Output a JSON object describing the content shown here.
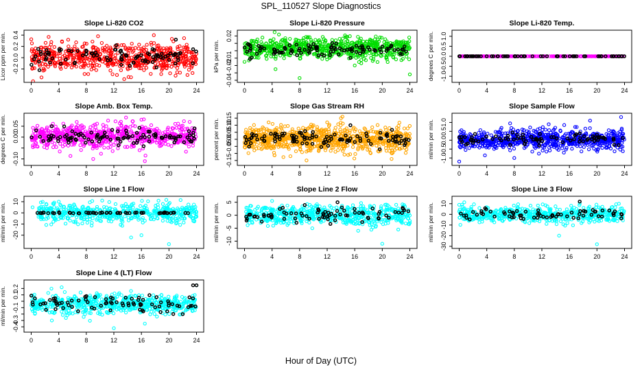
{
  "page": {
    "title": "SPL_110527  Slope Diagnostics",
    "xlabel": "Hour of Day (UTC)"
  },
  "colors": {
    "red": "#ff0000",
    "green": "#00dd00",
    "magenta": "#ff00ff",
    "orange": "#ffa500",
    "blue": "#0000ff",
    "cyan": "#00ffff",
    "black": "#000000"
  },
  "chart_data": [
    {
      "type": "scatter",
      "title": "Slope Li-820 CO2",
      "ylabel": "Licor ppm per min.",
      "xlim": [
        0,
        24
      ],
      "xticks": [
        0,
        4,
        8,
        12,
        16,
        20,
        24
      ],
      "ylim": [
        -0.4,
        0.45
      ],
      "yticks": [
        -0.2,
        0.0,
        0.2,
        0.4
      ],
      "ytick_labels": [
        "-0.2",
        "0.0",
        "0.2",
        "0.4"
      ],
      "series": [
        {
          "color": "red",
          "x_range": [
            0,
            24
          ],
          "count": 620,
          "center": 0.0,
          "spread": 0.12,
          "extremes": [
            [
              17.8,
              0.4
            ],
            [
              1.5,
              -0.35
            ],
            [
              13.5,
              -0.38
            ],
            [
              9.7,
              0.38
            ]
          ]
        },
        {
          "color": "black",
          "x_range": [
            0,
            24
          ],
          "count": 90,
          "center": 0.02,
          "spread": 0.08,
          "extremes": [
            [
              21,
              0.32
            ],
            [
              1.2,
              -0.22
            ],
            [
              23.5,
              0.15
            ]
          ]
        }
      ]
    },
    {
      "type": "scatter",
      "title": "Slope Li-820 Pressure",
      "ylabel": "kPa per min.",
      "xlim": [
        0,
        24
      ],
      "xticks": [
        0,
        4,
        8,
        12,
        16,
        20,
        24
      ],
      "ylim": [
        -0.04,
        0.025
      ],
      "yticks": [
        -0.04,
        -0.03,
        -0.02,
        -0.01,
        0.0,
        0.01,
        0.02
      ],
      "ytick_labels": [
        "-0.04",
        "",
        "-0.02",
        "-0.01",
        "",
        "",
        "0.02"
      ],
      "series": [
        {
          "color": "green",
          "x_range": [
            0,
            24
          ],
          "count": 700,
          "center": 0.003,
          "spread": 0.007,
          "extremes": [
            [
              5,
              0.022
            ],
            [
              8,
              -0.037
            ],
            [
              4.5,
              -0.025
            ],
            [
              24,
              -0.032
            ],
            [
              16,
              -0.02
            ],
            [
              0,
              -0.015
            ]
          ]
        },
        {
          "color": "black",
          "x_range": [
            0,
            24
          ],
          "count": 100,
          "center": 0.002,
          "spread": 0.004,
          "extremes": []
        }
      ]
    },
    {
      "type": "scatter",
      "title": "Slope Li-820 Temp.",
      "ylabel": "degrees C per min.",
      "xlim": [
        0,
        24
      ],
      "xticks": [
        0,
        4,
        8,
        12,
        16,
        20,
        24
      ],
      "ylim": [
        -1.2,
        1.2
      ],
      "yticks": [
        -1.0,
        -0.5,
        0.0,
        0.5,
        1.0
      ],
      "ytick_labels": [
        "-1.0",
        "-0.5",
        "0.0",
        "0.5",
        "1.0"
      ],
      "series": [
        {
          "color": "magenta",
          "x_range": [
            0,
            24
          ],
          "count": 260,
          "center": 0.0,
          "spread": 0.0,
          "extremes": []
        },
        {
          "color": "black",
          "x_range": [
            0,
            24
          ],
          "count": 60,
          "center": 0.0,
          "spread": 0.0,
          "extremes": []
        }
      ]
    },
    {
      "type": "scatter",
      "title": "Slope Amb. Box Temp.",
      "ylabel": "degrees C per min.",
      "xlim": [
        0,
        24
      ],
      "xticks": [
        0,
        4,
        8,
        12,
        16,
        20,
        24
      ],
      "ylim": [
        -0.12,
        0.1
      ],
      "yticks": [
        -0.1,
        -0.05,
        0.0,
        0.05
      ],
      "ytick_labels": [
        "-0.10",
        "",
        "0.00",
        "0.05"
      ],
      "series": [
        {
          "color": "magenta",
          "x_range": [
            0,
            24
          ],
          "count": 640,
          "center": 0.005,
          "spread": 0.027,
          "extremes": [
            [
              16,
              0.08
            ],
            [
              16.5,
              -0.11
            ],
            [
              9,
              -0.1
            ],
            [
              23,
              0.07
            ]
          ]
        },
        {
          "color": "black",
          "x_range": [
            0,
            24
          ],
          "count": 100,
          "center": 0.0,
          "spread": 0.018,
          "extremes": [
            [
              3,
              0.05
            ],
            [
              23.7,
              0.04
            ]
          ]
        }
      ]
    },
    {
      "type": "scatter",
      "title": "Slope Gas Stream RH",
      "ylabel": "percent per min.",
      "xlim": [
        0,
        24
      ],
      "xticks": [
        0,
        4,
        8,
        12,
        16,
        20,
        24
      ],
      "ylim": [
        -0.17,
        0.17
      ],
      "yticks": [
        -0.15,
        -0.1,
        -0.05,
        0.0,
        0.05,
        0.1,
        0.15
      ],
      "ytick_labels": [
        "-0.15",
        "",
        "-0.05",
        "0.00",
        "0.05",
        "0.10",
        "0.15"
      ],
      "series": [
        {
          "color": "orange",
          "x_range": [
            0,
            24
          ],
          "count": 820,
          "center": 0.0,
          "spread": 0.045,
          "extremes": [
            [
              14,
              0.15
            ],
            [
              9,
              -0.15
            ],
            [
              3.5,
              0.12
            ],
            [
              12,
              0.12
            ]
          ]
        },
        {
          "color": "black",
          "x_range": [
            0,
            24
          ],
          "count": 110,
          "center": 0.005,
          "spread": 0.025,
          "extremes": []
        }
      ]
    },
    {
      "type": "scatter",
      "title": "Slope Sample Flow",
      "ylabel": "ml/min per min.",
      "xlim": [
        0,
        24
      ],
      "xticks": [
        0,
        4,
        8,
        12,
        16,
        20,
        24
      ],
      "ylim": [
        -1.3,
        1.4
      ],
      "yticks": [
        -1.0,
        -0.5,
        0.0,
        0.5,
        1.0
      ],
      "ytick_labels": [
        "-1.0",
        "-0.5",
        "0.0",
        "0.5",
        "1.0"
      ],
      "series": [
        {
          "color": "blue",
          "x_range": [
            0,
            24
          ],
          "count": 760,
          "center": 0.02,
          "spread": 0.28,
          "extremes": [
            [
              23.5,
              1.3
            ],
            [
              0,
              -1.2
            ],
            [
              8,
              -1.0
            ],
            [
              19,
              1.1
            ],
            [
              13,
              0.9
            ]
          ]
        },
        {
          "color": "black",
          "x_range": [
            0,
            24
          ],
          "count": 80,
          "center": 0.05,
          "spread": 0.15,
          "extremes": []
        }
      ]
    },
    {
      "type": "scatter",
      "title": "Slope Line 1 Flow",
      "ylabel": "ml/min per min.",
      "xlim": [
        0,
        24
      ],
      "xticks": [
        0,
        4,
        8,
        12,
        16,
        20,
        24
      ],
      "ylim": [
        -30,
        13
      ],
      "yticks": [
        -20,
        -10,
        0,
        10
      ],
      "ytick_labels": [
        "-20",
        "-10",
        "0",
        "10"
      ],
      "series": [
        {
          "color": "cyan",
          "x_range": [
            1,
            24
          ],
          "count": 520,
          "center": 0.0,
          "spread": 4.2,
          "extremes": [
            [
              20,
              -28
            ],
            [
              14.5,
              -22
            ],
            [
              16,
              -20
            ],
            [
              4,
              10
            ],
            [
              0.2,
              5
            ]
          ]
        },
        {
          "color": "black",
          "x_range": [
            0.5,
            24
          ],
          "count": 55,
          "center": 0.0,
          "spread": 0.2,
          "extremes": []
        }
      ]
    },
    {
      "type": "scatter",
      "title": "Slope Line 2 Flow",
      "ylabel": "ml/min per min.",
      "xlim": [
        0,
        24
      ],
      "xticks": [
        0,
        4,
        8,
        12,
        16,
        20,
        24
      ],
      "ylim": [
        -12,
        6.5
      ],
      "yticks": [
        -10,
        -5,
        0,
        5
      ],
      "ytick_labels": [
        "-10",
        "-5",
        "0",
        "5"
      ],
      "series": [
        {
          "color": "cyan",
          "x_range": [
            0,
            24
          ],
          "count": 580,
          "center": 0.0,
          "spread": 1.9,
          "extremes": [
            [
              20,
              -11
            ],
            [
              16.5,
              -6
            ],
            [
              4,
              5.5
            ],
            [
              24,
              -3
            ]
          ]
        },
        {
          "color": "black",
          "x_range": [
            0,
            24
          ],
          "count": 75,
          "center": 0.0,
          "spread": 1.4,
          "extremes": [
            [
              13.5,
              5
            ]
          ]
        }
      ]
    },
    {
      "type": "scatter",
      "title": "Slope Line 3 Flow",
      "ylabel": "ml/min per min.",
      "xlim": [
        0,
        24
      ],
      "xticks": [
        0,
        4,
        8,
        12,
        16,
        20,
        24
      ],
      "ylim": [
        -30,
        15
      ],
      "yticks": [
        -30,
        -20,
        -10,
        0,
        10
      ],
      "ytick_labels": [
        "-30",
        "-20",
        "-10",
        "0",
        "10"
      ],
      "series": [
        {
          "color": "cyan",
          "x_range": [
            0,
            24
          ],
          "count": 560,
          "center": 0.0,
          "spread": 3.8,
          "extremes": [
            [
              20,
              -28
            ],
            [
              14.5,
              -20
            ],
            [
              0,
              9
            ],
            [
              17.5,
              10
            ]
          ]
        },
        {
          "color": "black",
          "x_range": [
            0,
            24
          ],
          "count": 70,
          "center": 0.0,
          "spread": 2.5,
          "extremes": [
            [
              17.5,
              12
            ]
          ]
        }
      ]
    },
    {
      "type": "scatter",
      "title": "Slope Line 4 (LT) Flow",
      "ylabel": "ml/min per min.",
      "xlim": [
        0,
        24
      ],
      "xticks": [
        0,
        4,
        8,
        12,
        16,
        20,
        24
      ],
      "ylim": [
        -0.45,
        0.3
      ],
      "yticks": [
        -0.4,
        -0.3,
        -0.2,
        -0.1,
        0.0,
        0.1,
        0.2
      ],
      "ytick_labels": [
        "-0.4",
        "-0.3",
        "",
        "-0.1",
        "",
        "0.1",
        "0.2"
      ],
      "series": [
        {
          "color": "cyan",
          "x_range": [
            0,
            24
          ],
          "count": 600,
          "center": -0.05,
          "spread": 0.075,
          "extremes": [
            [
              12,
              -0.42
            ],
            [
              16.5,
              -0.35
            ],
            [
              24,
              0.25
            ],
            [
              3,
              -0.3
            ]
          ]
        },
        {
          "color": "black",
          "x_range": [
            0,
            24
          ],
          "count": 80,
          "center": -0.03,
          "spread": 0.07,
          "extremes": [
            [
              23.5,
              0.25
            ],
            [
              24,
              0.25
            ],
            [
              22,
              -0.2
            ]
          ]
        }
      ]
    }
  ]
}
